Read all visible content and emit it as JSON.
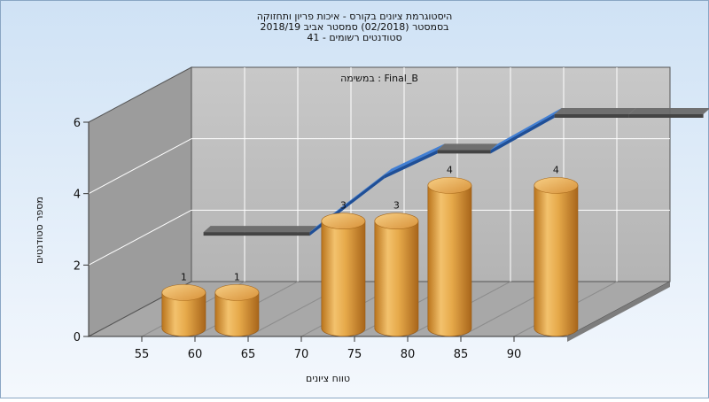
{
  "chart_data": {
    "type": "bar",
    "title_lines": [
      "היסטוגרמת ציונים בקורס - איכות פריון ותחזוקה",
      "בסמסטר  (02/2018)  סמסטר אביב 2018/19",
      "סטודנטים רשומים - 41"
    ],
    "annotation": "במשימה : Final_B",
    "xlabel": "טווח ציונים",
    "ylabel": "מספר סטודנטים",
    "x_ticks": [
      "55",
      "60",
      "65",
      "70",
      "75",
      "80",
      "85",
      "90"
    ],
    "y_ticks": [
      "0",
      "2",
      "4",
      "6"
    ],
    "ylim": [
      0,
      6
    ],
    "bars": [
      {
        "range": "55-60",
        "value": 1,
        "label": "1"
      },
      {
        "range": "60-65",
        "value": 1,
        "label": "1"
      },
      {
        "range": "70-75",
        "value": 3,
        "label": "3"
      },
      {
        "range": "75-80",
        "value": 3,
        "label": "3"
      },
      {
        "range": "80-85",
        "value": 4,
        "label": "4"
      },
      {
        "range": "90-95",
        "value": 4,
        "label": "4"
      }
    ],
    "trend_ribbon": {
      "description": "cumulative/trend ribbon, blue when rising, gray when flat",
      "points": [
        {
          "x": 55,
          "y": 2.0
        },
        {
          "x": 65,
          "y": 2.0
        },
        {
          "x": 72,
          "y": 3.6
        },
        {
          "x": 77,
          "y": 4.3
        },
        {
          "x": 82,
          "y": 4.3
        },
        {
          "x": 88,
          "y": 5.3
        },
        {
          "x": 95,
          "y": 5.3
        },
        {
          "x": 102,
          "y": 5.3
        }
      ]
    },
    "grid": true,
    "colors": {
      "background_top": "#cfe2f5",
      "background_bottom": "#f4f8fd",
      "wall": "#bdbdbd",
      "side_wall": "#9a9a9a",
      "floor": "#a9a9a9",
      "bar": "#e3a440",
      "ribbon_up": "#3a7bd5",
      "ribbon_flat": "#6a6a6a"
    }
  }
}
